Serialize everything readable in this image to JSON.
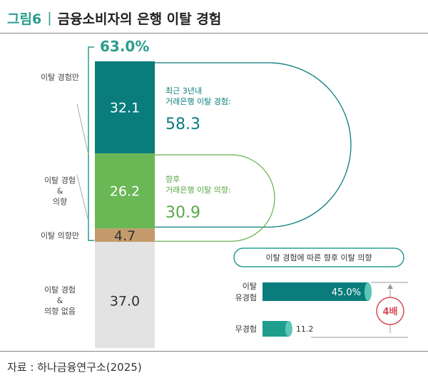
{
  "figure": {
    "label": "그림6",
    "separator": "|",
    "title": "금융소비자의 은행 이탈 경험"
  },
  "source": "자료 : 하나금융연구소(2025)",
  "chart_data": [
    {
      "type": "bar",
      "subtype": "stacked-100",
      "total_label": "63.0%",
      "segments": [
        {
          "label": "이탈 경험만",
          "value": 32.1,
          "value_text": "32.1",
          "color": "#0a7c7c"
        },
        {
          "label_lines": [
            "이탈 경험",
            "&",
            "의향"
          ],
          "value": 26.2,
          "value_text": "26.2",
          "color": "#6ab756"
        },
        {
          "label": "이탈 의향만",
          "value": 4.7,
          "value_text": "4.7",
          "color": "#c49a6c"
        },
        {
          "label_lines": [
            "이탈 경험",
            "&",
            "의향 없음"
          ],
          "value": 37.0,
          "value_text": "37.0",
          "color": "#e3e3e3"
        }
      ],
      "callouts": [
        {
          "lines": [
            "최근 3년내",
            "거래은행 이탈 경험:"
          ],
          "value": "58.3",
          "color": "#0a7c7c"
        },
        {
          "lines": [
            "향후",
            "거래은행 이탈 의향:"
          ],
          "value": "30.9",
          "color": "#5aa84a"
        }
      ]
    },
    {
      "type": "bar",
      "orientation": "horizontal",
      "title": "이탈 경험에 따른 향후 이탈 의향",
      "xlim": [
        0,
        45
      ],
      "bars": [
        {
          "label_lines": [
            "이탈",
            "유경험"
          ],
          "value": 45.0,
          "value_text": "45.0%",
          "color": "#0a7c7c"
        },
        {
          "label_lines": [
            "무경험"
          ],
          "value": 11.2,
          "value_text": "11.2",
          "color": "#1f9e8e"
        }
      ],
      "ratio_label": "4배",
      "ratio_color": "#d84a55"
    }
  ]
}
